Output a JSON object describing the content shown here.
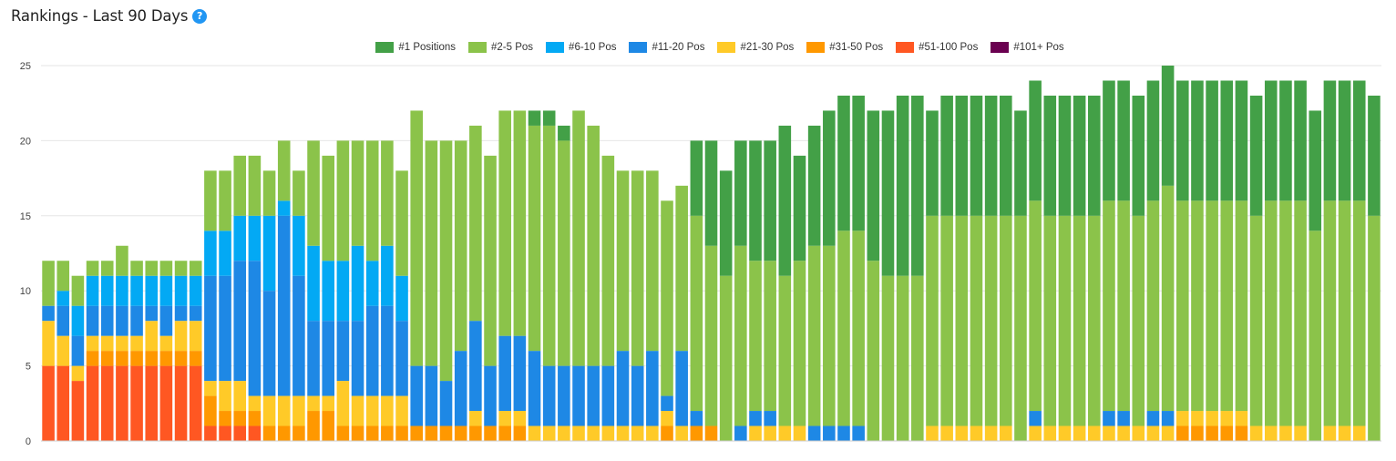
{
  "header": {
    "title": "Rankings - Last 90 Days",
    "help_glyph": "?"
  },
  "chart_data": {
    "type": "bar",
    "stacked": true,
    "ylim": [
      0,
      25
    ],
    "yticks": [
      0,
      5,
      10,
      15,
      20,
      25
    ],
    "grid": true,
    "legend_position": "top-center",
    "series": [
      {
        "name": "#101+ Pos",
        "color": "#6A0050",
        "values": [
          0,
          0,
          0,
          0,
          0,
          0,
          0,
          0,
          0,
          0,
          0,
          0,
          0,
          0,
          0,
          0,
          0,
          0,
          0,
          0,
          0,
          0,
          0,
          0,
          0,
          0,
          0,
          0,
          0,
          0,
          0,
          0,
          0,
          0,
          0,
          0,
          0,
          0,
          0,
          0,
          0,
          0,
          0,
          0,
          0,
          0,
          0,
          0,
          0,
          0,
          0,
          0,
          0,
          0,
          0,
          0,
          0,
          0,
          0,
          0,
          0,
          0,
          0,
          0,
          0,
          0,
          0,
          0,
          0,
          0,
          0,
          0,
          0,
          0,
          0,
          0,
          0,
          0,
          0,
          0,
          0,
          0,
          0,
          0,
          0,
          0,
          0,
          0,
          0,
          0,
          0
        ]
      },
      {
        "name": "#51-100 Pos",
        "color": "#FF5722",
        "values": [
          5,
          5,
          4,
          5,
          5,
          5,
          5,
          5,
          5,
          5,
          5,
          1,
          1,
          1,
          1,
          0,
          0,
          0,
          0,
          0,
          0,
          0,
          0,
          0,
          0,
          0,
          0,
          0,
          0,
          0,
          0,
          0,
          0,
          0,
          0,
          0,
          0,
          0,
          0,
          0,
          0,
          0,
          0,
          0,
          0,
          0,
          0,
          0,
          0,
          0,
          0,
          0,
          0,
          0,
          0,
          0,
          0,
          0,
          0,
          0,
          0,
          0,
          0,
          0,
          0,
          0,
          0,
          0,
          0,
          0,
          0,
          0,
          0,
          0,
          0,
          0,
          0,
          0,
          0,
          0,
          0,
          0,
          0,
          0,
          0,
          0,
          0,
          0,
          0,
          0,
          0
        ]
      },
      {
        "name": "#31-50 Pos",
        "color": "#FF9800",
        "values": [
          0,
          0,
          0,
          1,
          1,
          1,
          1,
          1,
          1,
          1,
          1,
          2,
          1,
          1,
          1,
          1,
          1,
          1,
          2,
          2,
          1,
          1,
          1,
          1,
          1,
          1,
          1,
          1,
          1,
          1,
          1,
          1,
          1,
          0,
          0,
          0,
          0,
          0,
          0,
          0,
          0,
          0,
          1,
          0,
          1,
          1,
          0,
          0,
          0,
          0,
          0,
          0,
          0,
          0,
          0,
          0,
          0,
          0,
          0,
          0,
          0,
          0,
          0,
          0,
          0,
          0,
          0,
          0,
          0,
          0,
          0,
          0,
          0,
          0,
          0,
          0,
          0,
          1,
          1,
          1,
          1,
          1,
          0,
          0,
          0,
          0,
          0,
          0,
          0,
          0,
          0
        ]
      },
      {
        "name": "#21-30 Pos",
        "color": "#FFCA28",
        "values": [
          3,
          2,
          1,
          1,
          1,
          1,
          1,
          2,
          1,
          2,
          2,
          1,
          2,
          2,
          1,
          2,
          2,
          2,
          1,
          1,
          3,
          2,
          2,
          2,
          2,
          0,
          0,
          0,
          0,
          1,
          0,
          1,
          1,
          1,
          1,
          1,
          1,
          1,
          1,
          1,
          1,
          1,
          1,
          1,
          0,
          0,
          0,
          0,
          1,
          1,
          1,
          1,
          0,
          0,
          0,
          0,
          0,
          0,
          0,
          0,
          1,
          1,
          1,
          1,
          1,
          1,
          0,
          1,
          1,
          1,
          1,
          1,
          1,
          1,
          1,
          1,
          1,
          1,
          1,
          1,
          1,
          1,
          1,
          1,
          1,
          1,
          0,
          1,
          1,
          1,
          0
        ]
      },
      {
        "name": "#11-20 Pos",
        "color": "#1E88E5",
        "values": [
          1,
          2,
          2,
          2,
          2,
          2,
          2,
          1,
          2,
          1,
          1,
          7,
          7,
          8,
          9,
          7,
          12,
          8,
          5,
          5,
          4,
          5,
          6,
          6,
          5,
          4,
          4,
          3,
          5,
          6,
          4,
          5,
          5,
          5,
          4,
          4,
          4,
          4,
          4,
          5,
          4,
          5,
          1,
          5,
          1,
          0,
          0,
          1,
          1,
          1,
          0,
          0,
          1,
          1,
          1,
          1,
          0,
          0,
          0,
          0,
          0,
          0,
          0,
          0,
          0,
          0,
          0,
          1,
          0,
          0,
          0,
          0,
          1,
          1,
          0,
          1,
          1,
          0,
          0,
          0,
          0,
          0,
          0,
          0,
          0,
          0,
          0,
          0,
          0,
          0,
          0
        ]
      },
      {
        "name": "#6-10 Pos",
        "color": "#03A9F4",
        "values": [
          0,
          1,
          2,
          2,
          2,
          2,
          2,
          2,
          2,
          2,
          2,
          3,
          3,
          3,
          3,
          5,
          1,
          4,
          5,
          4,
          4,
          5,
          3,
          4,
          3,
          0,
          0,
          0,
          0,
          0,
          0,
          0,
          0,
          0,
          0,
          0,
          0,
          0,
          0,
          0,
          0,
          0,
          0,
          0,
          0,
          0,
          0,
          0,
          0,
          0,
          0,
          0,
          0,
          0,
          0,
          0,
          0,
          0,
          0,
          0,
          0,
          0,
          0,
          0,
          0,
          0,
          0,
          0,
          0,
          0,
          0,
          0,
          0,
          0,
          0,
          0,
          0,
          0,
          0,
          0,
          0,
          0,
          0,
          0,
          0,
          0,
          0,
          0,
          0,
          0,
          0
        ]
      },
      {
        "name": "#2-5 Pos",
        "color": "#8BC34A",
        "values": [
          3,
          2,
          2,
          1,
          1,
          2,
          1,
          1,
          1,
          1,
          1,
          4,
          4,
          4,
          4,
          3,
          4,
          3,
          7,
          7,
          8,
          7,
          8,
          7,
          7,
          17,
          15,
          16,
          14,
          13,
          14,
          15,
          15,
          15,
          16,
          15,
          17,
          16,
          14,
          12,
          13,
          12,
          13,
          11,
          13,
          12,
          11,
          12,
          10,
          10,
          10,
          11,
          12,
          12,
          13,
          13,
          12,
          11,
          11,
          11,
          14,
          14,
          14,
          14,
          14,
          14,
          15,
          14,
          14,
          14,
          14,
          14,
          14,
          14,
          14,
          14,
          15,
          14,
          14,
          14,
          14,
          14,
          14,
          15,
          15,
          15,
          14,
          15,
          15,
          15,
          15
        ]
      },
      {
        "name": "#1 Positions",
        "color": "#43A047",
        "values": [
          0,
          0,
          0,
          0,
          0,
          0,
          0,
          0,
          0,
          0,
          0,
          0,
          0,
          0,
          0,
          0,
          0,
          0,
          0,
          0,
          0,
          0,
          0,
          0,
          0,
          0,
          0,
          0,
          0,
          0,
          0,
          0,
          0,
          1,
          1,
          1,
          0,
          0,
          0,
          0,
          0,
          0,
          0,
          0,
          5,
          7,
          7,
          7,
          8,
          8,
          10,
          7,
          8,
          9,
          9,
          9,
          10,
          11,
          12,
          12,
          7,
          8,
          8,
          8,
          8,
          8,
          7,
          8,
          8,
          8,
          8,
          8,
          8,
          8,
          8,
          8,
          8,
          8,
          8,
          8,
          8,
          8,
          8,
          8,
          8,
          8,
          8,
          8,
          8,
          8,
          8
        ]
      }
    ]
  }
}
